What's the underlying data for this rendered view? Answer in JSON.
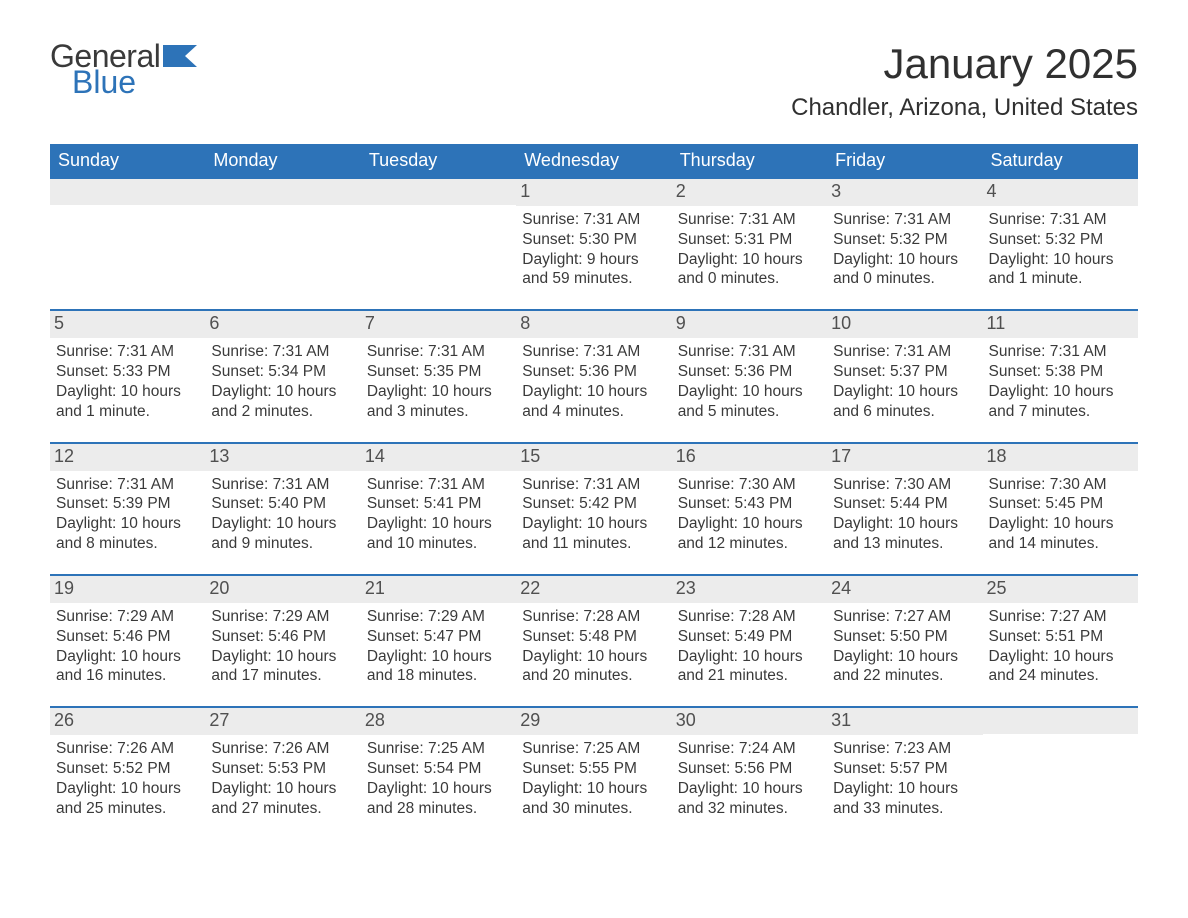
{
  "logo": {
    "general": "General",
    "blue": "Blue"
  },
  "title": "January 2025",
  "location": "Chandler, Arizona, United States",
  "colors": {
    "header_bg": "#2d73b8",
    "header_text": "#ffffff",
    "daynum_bg": "#ececec",
    "text": "#3a3a3a",
    "week_border": "#2d73b8",
    "page_bg": "#ffffff"
  },
  "typography": {
    "title_fontsize": 42,
    "location_fontsize": 24,
    "dow_fontsize": 18,
    "daynum_fontsize": 18,
    "info_fontsize": 15.5
  },
  "days_of_week": [
    "Sunday",
    "Monday",
    "Tuesday",
    "Wednesday",
    "Thursday",
    "Friday",
    "Saturday"
  ],
  "weeks": [
    [
      {
        "num": "",
        "sunrise": "",
        "sunset": "",
        "daylight": ""
      },
      {
        "num": "",
        "sunrise": "",
        "sunset": "",
        "daylight": ""
      },
      {
        "num": "",
        "sunrise": "",
        "sunset": "",
        "daylight": ""
      },
      {
        "num": "1",
        "sunrise": "Sunrise: 7:31 AM",
        "sunset": "Sunset: 5:30 PM",
        "daylight": "Daylight: 9 hours and 59 minutes."
      },
      {
        "num": "2",
        "sunrise": "Sunrise: 7:31 AM",
        "sunset": "Sunset: 5:31 PM",
        "daylight": "Daylight: 10 hours and 0 minutes."
      },
      {
        "num": "3",
        "sunrise": "Sunrise: 7:31 AM",
        "sunset": "Sunset: 5:32 PM",
        "daylight": "Daylight: 10 hours and 0 minutes."
      },
      {
        "num": "4",
        "sunrise": "Sunrise: 7:31 AM",
        "sunset": "Sunset: 5:32 PM",
        "daylight": "Daylight: 10 hours and 1 minute."
      }
    ],
    [
      {
        "num": "5",
        "sunrise": "Sunrise: 7:31 AM",
        "sunset": "Sunset: 5:33 PM",
        "daylight": "Daylight: 10 hours and 1 minute."
      },
      {
        "num": "6",
        "sunrise": "Sunrise: 7:31 AM",
        "sunset": "Sunset: 5:34 PM",
        "daylight": "Daylight: 10 hours and 2 minutes."
      },
      {
        "num": "7",
        "sunrise": "Sunrise: 7:31 AM",
        "sunset": "Sunset: 5:35 PM",
        "daylight": "Daylight: 10 hours and 3 minutes."
      },
      {
        "num": "8",
        "sunrise": "Sunrise: 7:31 AM",
        "sunset": "Sunset: 5:36 PM",
        "daylight": "Daylight: 10 hours and 4 minutes."
      },
      {
        "num": "9",
        "sunrise": "Sunrise: 7:31 AM",
        "sunset": "Sunset: 5:36 PM",
        "daylight": "Daylight: 10 hours and 5 minutes."
      },
      {
        "num": "10",
        "sunrise": "Sunrise: 7:31 AM",
        "sunset": "Sunset: 5:37 PM",
        "daylight": "Daylight: 10 hours and 6 minutes."
      },
      {
        "num": "11",
        "sunrise": "Sunrise: 7:31 AM",
        "sunset": "Sunset: 5:38 PM",
        "daylight": "Daylight: 10 hours and 7 minutes."
      }
    ],
    [
      {
        "num": "12",
        "sunrise": "Sunrise: 7:31 AM",
        "sunset": "Sunset: 5:39 PM",
        "daylight": "Daylight: 10 hours and 8 minutes."
      },
      {
        "num": "13",
        "sunrise": "Sunrise: 7:31 AM",
        "sunset": "Sunset: 5:40 PM",
        "daylight": "Daylight: 10 hours and 9 minutes."
      },
      {
        "num": "14",
        "sunrise": "Sunrise: 7:31 AM",
        "sunset": "Sunset: 5:41 PM",
        "daylight": "Daylight: 10 hours and 10 minutes."
      },
      {
        "num": "15",
        "sunrise": "Sunrise: 7:31 AM",
        "sunset": "Sunset: 5:42 PM",
        "daylight": "Daylight: 10 hours and 11 minutes."
      },
      {
        "num": "16",
        "sunrise": "Sunrise: 7:30 AM",
        "sunset": "Sunset: 5:43 PM",
        "daylight": "Daylight: 10 hours and 12 minutes."
      },
      {
        "num": "17",
        "sunrise": "Sunrise: 7:30 AM",
        "sunset": "Sunset: 5:44 PM",
        "daylight": "Daylight: 10 hours and 13 minutes."
      },
      {
        "num": "18",
        "sunrise": "Sunrise: 7:30 AM",
        "sunset": "Sunset: 5:45 PM",
        "daylight": "Daylight: 10 hours and 14 minutes."
      }
    ],
    [
      {
        "num": "19",
        "sunrise": "Sunrise: 7:29 AM",
        "sunset": "Sunset: 5:46 PM",
        "daylight": "Daylight: 10 hours and 16 minutes."
      },
      {
        "num": "20",
        "sunrise": "Sunrise: 7:29 AM",
        "sunset": "Sunset: 5:46 PM",
        "daylight": "Daylight: 10 hours and 17 minutes."
      },
      {
        "num": "21",
        "sunrise": "Sunrise: 7:29 AM",
        "sunset": "Sunset: 5:47 PM",
        "daylight": "Daylight: 10 hours and 18 minutes."
      },
      {
        "num": "22",
        "sunrise": "Sunrise: 7:28 AM",
        "sunset": "Sunset: 5:48 PM",
        "daylight": "Daylight: 10 hours and 20 minutes."
      },
      {
        "num": "23",
        "sunrise": "Sunrise: 7:28 AM",
        "sunset": "Sunset: 5:49 PM",
        "daylight": "Daylight: 10 hours and 21 minutes."
      },
      {
        "num": "24",
        "sunrise": "Sunrise: 7:27 AM",
        "sunset": "Sunset: 5:50 PM",
        "daylight": "Daylight: 10 hours and 22 minutes."
      },
      {
        "num": "25",
        "sunrise": "Sunrise: 7:27 AM",
        "sunset": "Sunset: 5:51 PM",
        "daylight": "Daylight: 10 hours and 24 minutes."
      }
    ],
    [
      {
        "num": "26",
        "sunrise": "Sunrise: 7:26 AM",
        "sunset": "Sunset: 5:52 PM",
        "daylight": "Daylight: 10 hours and 25 minutes."
      },
      {
        "num": "27",
        "sunrise": "Sunrise: 7:26 AM",
        "sunset": "Sunset: 5:53 PM",
        "daylight": "Daylight: 10 hours and 27 minutes."
      },
      {
        "num": "28",
        "sunrise": "Sunrise: 7:25 AM",
        "sunset": "Sunset: 5:54 PM",
        "daylight": "Daylight: 10 hours and 28 minutes."
      },
      {
        "num": "29",
        "sunrise": "Sunrise: 7:25 AM",
        "sunset": "Sunset: 5:55 PM",
        "daylight": "Daylight: 10 hours and 30 minutes."
      },
      {
        "num": "30",
        "sunrise": "Sunrise: 7:24 AM",
        "sunset": "Sunset: 5:56 PM",
        "daylight": "Daylight: 10 hours and 32 minutes."
      },
      {
        "num": "31",
        "sunrise": "Sunrise: 7:23 AM",
        "sunset": "Sunset: 5:57 PM",
        "daylight": "Daylight: 10 hours and 33 minutes."
      },
      {
        "num": "",
        "sunrise": "",
        "sunset": "",
        "daylight": ""
      }
    ]
  ]
}
